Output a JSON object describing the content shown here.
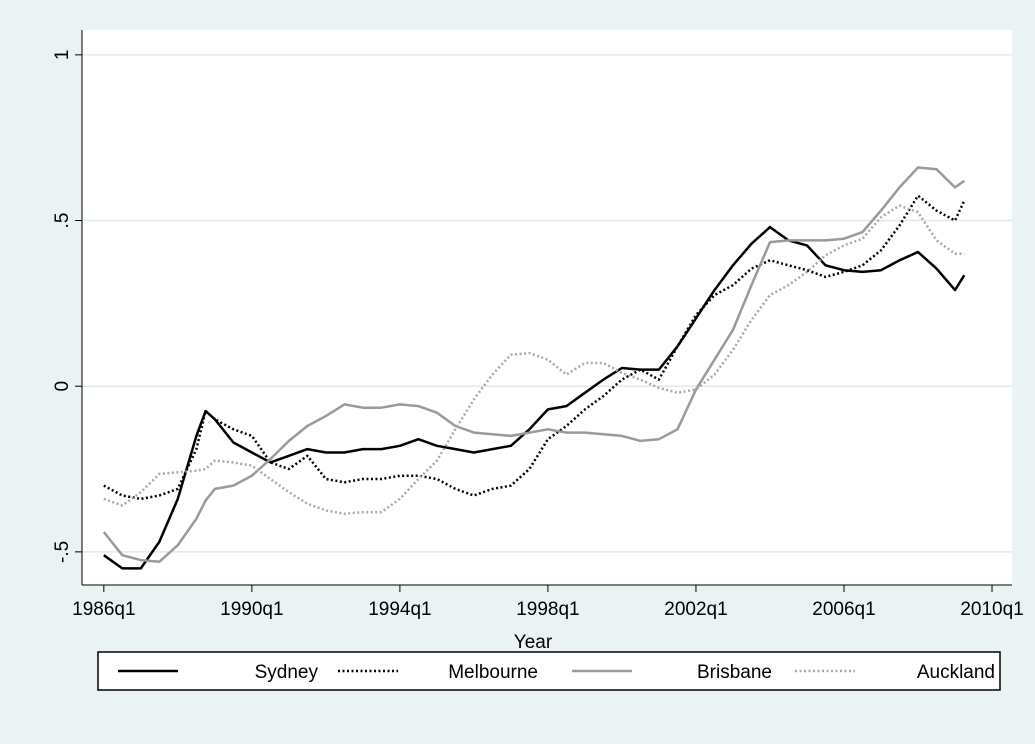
{
  "chart_data": {
    "type": "line",
    "x_label": "Year",
    "x": [
      1986.0,
      1986.5,
      1987.0,
      1987.5,
      1988.0,
      1988.5,
      1988.75,
      1989.0,
      1989.5,
      1990.0,
      1990.5,
      1991.0,
      1991.5,
      1992.0,
      1992.5,
      1993.0,
      1993.5,
      1994.0,
      1994.5,
      1995.0,
      1995.5,
      1996.0,
      1996.5,
      1997.0,
      1997.5,
      1998.0,
      1998.5,
      1999.0,
      1999.5,
      2000.0,
      2000.5,
      2001.0,
      2001.5,
      2002.0,
      2002.5,
      2003.0,
      2003.5,
      2004.0,
      2004.5,
      2005.0,
      2005.5,
      2006.0,
      2006.5,
      2007.0,
      2007.5,
      2008.0,
      2008.5,
      2009.0,
      2009.25
    ],
    "series": [
      {
        "name": "Sydney",
        "color": "#000000",
        "style": "solid",
        "values": [
          -0.51,
          -0.55,
          -0.55,
          -0.47,
          -0.34,
          -0.15,
          -0.075,
          -0.1,
          -0.17,
          -0.2,
          -0.23,
          -0.21,
          -0.19,
          -0.2,
          -0.2,
          -0.19,
          -0.19,
          -0.18,
          -0.16,
          -0.18,
          -0.19,
          -0.2,
          -0.19,
          -0.18,
          -0.13,
          -0.07,
          -0.06,
          -0.02,
          0.02,
          0.055,
          0.05,
          0.05,
          0.12,
          0.205,
          0.29,
          0.365,
          0.43,
          0.48,
          0.44,
          0.425,
          0.365,
          0.35,
          0.345,
          0.35,
          0.38,
          0.405,
          0.355,
          0.29,
          0.335
        ]
      },
      {
        "name": "Melbourne",
        "color": "#000000",
        "style": "dotted",
        "values": [
          -0.3,
          -0.33,
          -0.34,
          -0.33,
          -0.31,
          -0.19,
          -0.075,
          -0.1,
          -0.13,
          -0.15,
          -0.23,
          -0.25,
          -0.21,
          -0.28,
          -0.29,
          -0.28,
          -0.28,
          -0.27,
          -0.27,
          -0.28,
          -0.31,
          -0.33,
          -0.31,
          -0.3,
          -0.25,
          -0.16,
          -0.12,
          -0.07,
          -0.03,
          0.02,
          0.05,
          0.02,
          0.12,
          0.215,
          0.275,
          0.305,
          0.355,
          0.38,
          0.365,
          0.35,
          0.33,
          0.345,
          0.365,
          0.41,
          0.485,
          0.575,
          0.53,
          0.5,
          0.56
        ]
      },
      {
        "name": "Brisbane",
        "color": "#9a9a9a",
        "style": "solid",
        "values": [
          -0.44,
          -0.51,
          -0.525,
          -0.53,
          -0.48,
          -0.4,
          -0.345,
          -0.31,
          -0.3,
          -0.27,
          -0.22,
          -0.165,
          -0.12,
          -0.09,
          -0.055,
          -0.065,
          -0.065,
          -0.055,
          -0.06,
          -0.08,
          -0.12,
          -0.14,
          -0.145,
          -0.15,
          -0.14,
          -0.13,
          -0.14,
          -0.14,
          -0.145,
          -0.15,
          -0.165,
          -0.16,
          -0.13,
          -0.01,
          0.08,
          0.17,
          0.305,
          0.435,
          0.44,
          0.44,
          0.44,
          0.445,
          0.465,
          0.53,
          0.6,
          0.66,
          0.655,
          0.6,
          0.62
        ]
      },
      {
        "name": "Auckland",
        "color": "#a8a8a8",
        "style": "dotted",
        "values": [
          -0.34,
          -0.36,
          -0.32,
          -0.265,
          -0.26,
          -0.255,
          -0.25,
          -0.225,
          -0.23,
          -0.24,
          -0.28,
          -0.32,
          -0.355,
          -0.375,
          -0.385,
          -0.38,
          -0.38,
          -0.34,
          -0.28,
          -0.225,
          -0.13,
          -0.04,
          0.035,
          0.095,
          0.1,
          0.08,
          0.035,
          0.07,
          0.07,
          0.04,
          0.02,
          -0.005,
          -0.02,
          -0.01,
          0.035,
          0.11,
          0.2,
          0.275,
          0.305,
          0.345,
          0.395,
          0.425,
          0.445,
          0.51,
          0.545,
          0.525,
          0.44,
          0.4,
          0.4
        ]
      }
    ],
    "xlim": [
      1985.41,
      2010.54
    ],
    "xticks": [
      {
        "value": 1986,
        "label": "1986q1"
      },
      {
        "value": 1990,
        "label": "1990q1"
      },
      {
        "value": 1994,
        "label": "1994q1"
      },
      {
        "value": 1998,
        "label": "1998q1"
      },
      {
        "value": 2002,
        "label": "2002q1"
      },
      {
        "value": 2006,
        "label": "2006q1"
      },
      {
        "value": 2010,
        "label": "2010q1"
      }
    ],
    "ylim": [
      -0.6,
      1.075
    ],
    "yticks": [
      {
        "value": -0.5,
        "label": "-.5"
      },
      0,
      {
        "value": 0.5,
        "label": ".5"
      },
      1
    ],
    "grid": true,
    "legend": "bottom"
  }
}
